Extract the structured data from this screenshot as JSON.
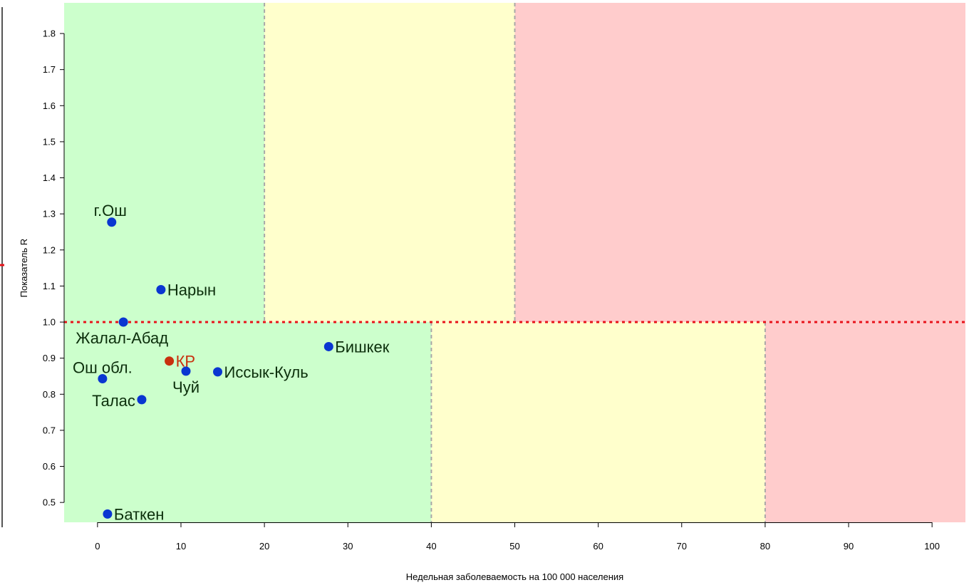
{
  "chart_data": {
    "type": "scatter",
    "xlabel": "Недельная заболеваемость на 100 000 населения",
    "ylabel": "Показатель R",
    "xlim": [
      -4,
      104
    ],
    "ylim": [
      0.445,
      1.885
    ],
    "x_ticks": [
      0,
      10,
      20,
      30,
      40,
      50,
      60,
      70,
      80,
      90,
      100
    ],
    "x_tick_labels": [
      "0",
      "10",
      "20",
      "30",
      "40",
      "50",
      "60",
      "70",
      "80",
      "90",
      "100"
    ],
    "y_ticks": [
      0.5,
      0.6,
      0.7,
      0.8,
      0.9,
      1.0,
      1.1,
      1.2,
      1.3,
      1.4,
      1.5,
      1.6,
      1.7,
      1.8
    ],
    "y_tick_labels": [
      "0.5",
      "0.6",
      "0.7",
      "0.8",
      "0.9",
      "1.0",
      "1.1",
      "1.2",
      "1.3",
      "1.4",
      "1.5",
      "1.6",
      "1.7",
      "1.8"
    ],
    "reference_line": {
      "y": 1.0,
      "color": "#e8141b",
      "style": "dotted"
    },
    "zones": [
      {
        "x0": -4,
        "x1": 20,
        "y0": 1.0,
        "y1": 1.885,
        "color": "#ccffcc"
      },
      {
        "x0": 20,
        "x1": 50,
        "y0": 1.0,
        "y1": 1.885,
        "color": "#ffffcc"
      },
      {
        "x0": 50,
        "x1": 104,
        "y0": 1.0,
        "y1": 1.885,
        "color": "#ffcccc"
      },
      {
        "x0": -4,
        "x1": 40,
        "y0": 0.445,
        "y1": 1.0,
        "color": "#ccffcc"
      },
      {
        "x0": 40,
        "x1": 80,
        "y0": 0.445,
        "y1": 1.0,
        "color": "#ffffcc"
      },
      {
        "x0": 80,
        "x1": 104,
        "y0": 0.445,
        "y1": 1.0,
        "color": "#ffcccc"
      }
    ],
    "zone_dividers": [
      {
        "x": 20,
        "y0": 1.0,
        "y1": 1.885
      },
      {
        "x": 50,
        "y0": 1.0,
        "y1": 1.885
      },
      {
        "x": 40,
        "y0": 0.445,
        "y1": 1.0
      },
      {
        "x": 80,
        "y0": 0.445,
        "y1": 1.0
      }
    ],
    "points": [
      {
        "label": "г.Ош",
        "x": 1.7,
        "y": 1.277,
        "color": "#0a36d1",
        "label_color": "#0b2e0b",
        "label_pos": "above-left"
      },
      {
        "label": "Нарын",
        "x": 7.6,
        "y": 1.09,
        "color": "#0a36d1",
        "label_color": "#0b2e0b",
        "label_pos": "right"
      },
      {
        "label": "Жалал-Абад",
        "x": 3.1,
        "y": 1.0,
        "color": "#0a36d1",
        "label_color": "#0b2e0b",
        "label_pos": "below"
      },
      {
        "label": "Бишкек",
        "x": 27.7,
        "y": 0.932,
        "color": "#0a36d1",
        "label_color": "#0b2e0b",
        "label_pos": "right"
      },
      {
        "label": "КР",
        "x": 8.6,
        "y": 0.892,
        "color": "#c8300e",
        "label_color": "#c8300e",
        "label_pos": "right"
      },
      {
        "label": "Чуй",
        "x": 10.6,
        "y": 0.864,
        "color": "#0a36d1",
        "label_color": "#0b2e0b",
        "label_pos": "below"
      },
      {
        "label": "Иссык-Куль",
        "x": 14.4,
        "y": 0.862,
        "color": "#0a36d1",
        "label_color": "#0b2e0b",
        "label_pos": "right"
      },
      {
        "label": "Ош обл.",
        "x": 0.6,
        "y": 0.843,
        "color": "#0a36d1",
        "label_color": "#0b2e0b",
        "label_pos": "above"
      },
      {
        "label": "Талас",
        "x": 5.3,
        "y": 0.785,
        "color": "#0a36d1",
        "label_color": "#0b2e0b",
        "label_pos": "left"
      },
      {
        "label": "Баткен",
        "x": 1.2,
        "y": 0.468,
        "color": "#0a36d1",
        "label_color": "#0b2e0b",
        "label_pos": "right"
      }
    ]
  }
}
